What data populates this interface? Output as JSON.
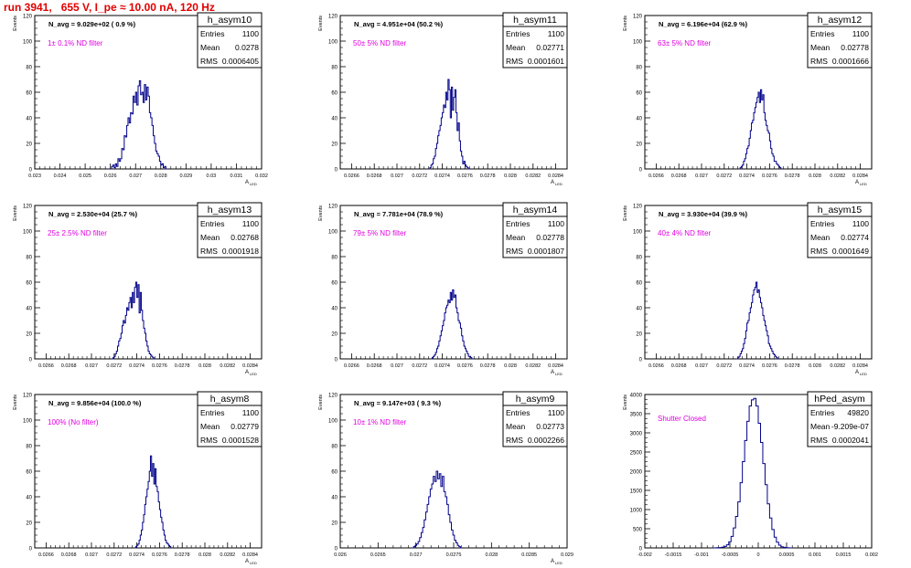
{
  "page": {
    "title": "run 3941,   655 V, I_pe ≈ 10.00 nA, 120 Hz"
  },
  "colors": {
    "title": "#e00000",
    "histogram": "#00008b",
    "annotation": "#e000e0",
    "frame": "#000000"
  },
  "chart_data": [
    {
      "type": "bar",
      "name": "h_asym10",
      "stats": {
        "entries": "1100",
        "mean": "0.0278",
        "rms": "0.0006405"
      },
      "navg": "N_avg = 9.029e+02 ( 0.9 %)",
      "annotation": "1± 0.1% ND filter",
      "xlabel": "A_LED",
      "ylabel": "Events",
      "xlim": [
        0.023,
        0.032
      ],
      "ylim": [
        0,
        120
      ],
      "xticks": [
        "0.023",
        "0.024",
        "0.025",
        "0.026",
        "0.027",
        "0.028",
        "0.029",
        "0.03",
        "0.031",
        "0.032"
      ],
      "yticks": [
        "0",
        "20",
        "40",
        "60",
        "80",
        "100",
        "120"
      ],
      "bin_start": 0.026,
      "bin_width": 5e-05,
      "values": [
        0,
        2,
        3,
        1,
        4,
        2,
        8,
        6,
        8,
        16,
        15,
        26,
        25,
        34,
        40,
        36,
        44,
        43,
        57,
        52,
        60,
        50,
        65,
        69,
        58,
        60,
        52,
        66,
        54,
        64,
        57,
        44,
        40,
        34,
        26,
        20,
        14,
        12,
        10,
        6,
        3,
        4,
        1,
        2,
        0
      ]
    },
    {
      "type": "bar",
      "name": "h_asym11",
      "stats": {
        "entries": "1100",
        "mean": "0.02771",
        "rms": "0.0001601"
      },
      "navg": "N_avg = 4.951e+04 (50.2 %)",
      "annotation": "50± 5% ND filter",
      "xlabel": "A_LED",
      "ylabel": "Events",
      "xlim": [
        0.0265,
        0.0285
      ],
      "ylim": [
        0,
        120
      ],
      "xticks": [
        "0.0266",
        "0.0268",
        "0.027",
        "0.0272",
        "0.0274",
        "0.0276",
        "0.0278",
        "0.028",
        "0.0282",
        "0.0284"
      ],
      "yticks": [
        "0",
        "20",
        "40",
        "60",
        "80",
        "100",
        "120"
      ],
      "bin_start": 0.02728,
      "bin_width": 1e-05,
      "values": [
        0,
        1,
        3,
        4,
        8,
        10,
        16,
        20,
        26,
        30,
        34,
        40,
        44,
        50,
        48,
        60,
        54,
        70,
        62,
        40,
        64,
        46,
        56,
        62,
        44,
        30,
        36,
        22,
        14,
        10,
        4,
        6,
        3,
        2,
        1,
        0
      ]
    },
    {
      "type": "bar",
      "name": "h_asym12",
      "stats": {
        "entries": "1100",
        "mean": "0.02778",
        "rms": "0.0001666"
      },
      "navg": "N_avg = 6.196e+04 (62.9 %)",
      "annotation": "63± 5% ND filter",
      "xlabel": "A_LED",
      "ylabel": "Events",
      "xlim": [
        0.0265,
        0.0285
      ],
      "ylim": [
        0,
        120
      ],
      "xticks": [
        "0.0266",
        "0.0268",
        "0.027",
        "0.0272",
        "0.0274",
        "0.0276",
        "0.0278",
        "0.028",
        "0.0282",
        "0.0284"
      ],
      "yticks": [
        "0",
        "20",
        "40",
        "60",
        "80",
        "100",
        "120"
      ],
      "bin_start": 0.02733,
      "bin_width": 1e-05,
      "values": [
        0,
        1,
        2,
        3,
        6,
        8,
        12,
        16,
        18,
        24,
        30,
        36,
        38,
        44,
        48,
        52,
        56,
        60,
        52,
        62,
        54,
        58,
        44,
        38,
        34,
        30,
        28,
        22,
        16,
        12,
        10,
        6,
        6,
        4,
        3,
        2,
        1,
        0
      ]
    },
    {
      "type": "bar",
      "name": "h_asym13",
      "stats": {
        "entries": "1100",
        "mean": "0.02768",
        "rms": "0.0001918"
      },
      "navg": "N_avg = 2.530e+04 (25.7 %)",
      "annotation": "25± 2.5% ND filter",
      "xlabel": "A_LED",
      "ylabel": "Events",
      "xlim": [
        0.0265,
        0.0285
      ],
      "ylim": [
        0,
        120
      ],
      "xticks": [
        "0.0266",
        "0.0268",
        "0.027",
        "0.0272",
        "0.0274",
        "0.0276",
        "0.0278",
        "0.028",
        "0.0282",
        "0.0284"
      ],
      "yticks": [
        "0",
        "20",
        "40",
        "60",
        "80",
        "100",
        "120"
      ],
      "bin_start": 0.02718,
      "bin_width": 1e-05,
      "values": [
        0,
        1,
        2,
        4,
        6,
        10,
        14,
        16,
        20,
        26,
        30,
        28,
        34,
        40,
        38,
        44,
        48,
        40,
        52,
        44,
        56,
        60,
        48,
        58,
        36,
        52,
        38,
        30,
        24,
        20,
        14,
        10,
        6,
        4,
        3,
        2,
        1,
        0
      ]
    },
    {
      "type": "bar",
      "name": "h_asym14",
      "stats": {
        "entries": "1100",
        "mean": "0.02778",
        "rms": "0.0001807"
      },
      "navg": "N_avg = 7.781e+04 (78.9 %)",
      "annotation": "79± 5% ND filter",
      "xlabel": "A_LED",
      "ylabel": "Events",
      "xlim": [
        0.0265,
        0.0285
      ],
      "ylim": [
        0,
        120
      ],
      "xticks": [
        "0.0266",
        "0.0268",
        "0.027",
        "0.0272",
        "0.0274",
        "0.0276",
        "0.0278",
        "0.028",
        "0.0282",
        "0.0284"
      ],
      "yticks": [
        "0",
        "20",
        "40",
        "60",
        "80",
        "100",
        "120"
      ],
      "bin_start": 0.0273,
      "bin_width": 1e-05,
      "values": [
        0,
        1,
        2,
        3,
        5,
        8,
        10,
        14,
        18,
        22,
        26,
        30,
        36,
        40,
        42,
        46,
        44,
        52,
        46,
        54,
        48,
        50,
        40,
        36,
        30,
        28,
        24,
        18,
        14,
        10,
        8,
        6,
        4,
        2,
        2,
        1,
        0
      ]
    },
    {
      "type": "bar",
      "name": "h_asym15",
      "stats": {
        "entries": "1100",
        "mean": "0.02774",
        "rms": "0.0001649"
      },
      "navg": "N_avg = 3.930e+04 (39.9 %)",
      "annotation": "40± 4% ND filter",
      "xlabel": "A_LED",
      "ylabel": "Events",
      "xlim": [
        0.0265,
        0.0285
      ],
      "ylim": [
        0,
        120
      ],
      "xticks": [
        "0.0266",
        "0.0268",
        "0.027",
        "0.0272",
        "0.0274",
        "0.0276",
        "0.0278",
        "0.028",
        "0.0282",
        "0.0284"
      ],
      "yticks": [
        "0",
        "20",
        "40",
        "60",
        "80",
        "100",
        "120"
      ],
      "bin_start": 0.02731,
      "bin_width": 1e-05,
      "values": [
        0,
        1,
        2,
        4,
        6,
        8,
        12,
        16,
        22,
        28,
        30,
        36,
        40,
        44,
        50,
        54,
        56,
        60,
        52,
        54,
        48,
        44,
        40,
        34,
        30,
        26,
        22,
        18,
        12,
        10,
        8,
        6,
        4,
        3,
        2,
        1,
        0
      ]
    },
    {
      "type": "bar",
      "name": "h_asym8",
      "stats": {
        "entries": "1100",
        "mean": "0.02779",
        "rms": "0.0001528"
      },
      "navg": "N_avg = 9.856e+04 (100.0 %)",
      "annotation": "100% (No filter)",
      "xlabel": "A_LED",
      "ylabel": "Events",
      "xlim": [
        0.0265,
        0.0285
      ],
      "ylim": [
        0,
        120
      ],
      "xticks": [
        "0.0266",
        "0.0268",
        "0.027",
        "0.0272",
        "0.0274",
        "0.0276",
        "0.0278",
        "0.028",
        "0.0282",
        "0.0284"
      ],
      "yticks": [
        "0",
        "20",
        "40",
        "60",
        "80",
        "100",
        "120"
      ],
      "bin_start": 0.02738,
      "bin_width": 1e-05,
      "values": [
        0,
        1,
        2,
        3,
        6,
        10,
        14,
        20,
        26,
        34,
        40,
        46,
        52,
        60,
        72,
        56,
        66,
        50,
        62,
        48,
        44,
        36,
        30,
        24,
        20,
        14,
        10,
        6,
        4,
        3,
        2,
        1,
        0
      ]
    },
    {
      "type": "bar",
      "name": "h_asym9",
      "stats": {
        "entries": "1100",
        "mean": "0.02773",
        "rms": "0.0002266"
      },
      "navg": "N_avg = 9.147e+03 ( 9.3 %)",
      "annotation": "10± 1% ND filter",
      "xlabel": "A_LED",
      "ylabel": "Events",
      "xlim": [
        0.026,
        0.029
      ],
      "ylim": [
        0,
        120
      ],
      "xticks": [
        "0.026",
        "0.0265",
        "0.027",
        "0.0275",
        "0.028",
        "0.0285",
        "0.029"
      ],
      "yticks": [
        "0",
        "20",
        "40",
        "60",
        "80",
        "100",
        "120"
      ],
      "bin_start": 0.02695,
      "bin_width": 2e-05,
      "values": [
        0,
        1,
        2,
        3,
        5,
        8,
        12,
        16,
        22,
        28,
        34,
        40,
        46,
        50,
        56,
        52,
        60,
        54,
        58,
        48,
        56,
        44,
        40,
        34,
        26,
        20,
        14,
        10,
        6,
        4,
        2,
        1,
        0
      ]
    },
    {
      "type": "bar",
      "name": "hPed_asym",
      "stats": {
        "entries": "49820",
        "mean": "-9.209e-07",
        "rms": "0.0002041"
      },
      "navg": "",
      "annotation": "Shutter Closed",
      "xlabel": "",
      "ylabel": "Events",
      "xlim": [
        -0.002,
        0.002
      ],
      "ylim": [
        0,
        4000
      ],
      "xticks": [
        "-0.002",
        "-0.0015",
        "-0.001",
        "-0.0005",
        "0",
        "0.0005",
        "0.001",
        "0.0015",
        "0.002"
      ],
      "yticks": [
        "0",
        "500",
        "1000",
        "1500",
        "2000",
        "2500",
        "3000",
        "3500",
        "4000"
      ],
      "bin_start": -0.0008,
      "bin_width": 4e-05,
      "values": [
        0,
        2,
        5,
        10,
        20,
        40,
        80,
        160,
        300,
        520,
        820,
        1200,
        1700,
        2250,
        2800,
        3300,
        3700,
        3860,
        3900,
        3700,
        3250,
        2750,
        2200,
        1650,
        1150,
        780,
        480,
        280,
        150,
        70,
        30,
        14,
        6,
        2,
        0
      ]
    }
  ]
}
